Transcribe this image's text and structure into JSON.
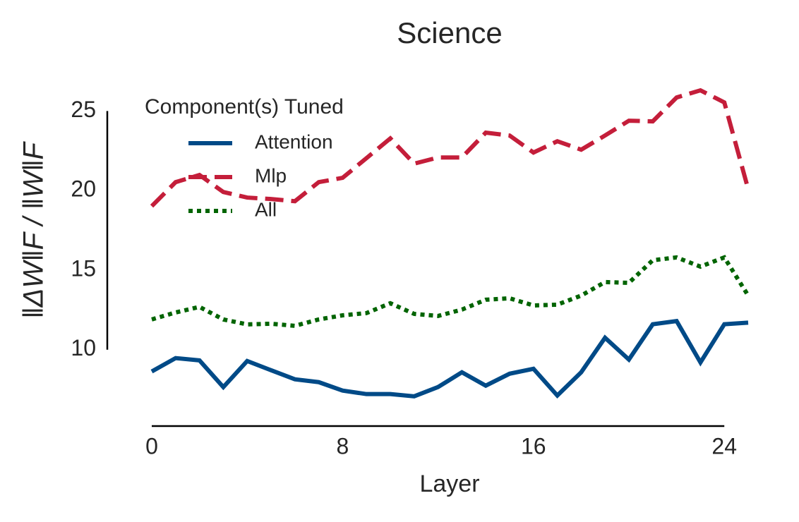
{
  "chart_data": {
    "type": "line",
    "title": "Science",
    "x_label": "Layer",
    "y_label": "‖ΔW‖F / ‖W‖F",
    "x": [
      0,
      1,
      2,
      3,
      4,
      5,
      6,
      7,
      8,
      9,
      10,
      11,
      12,
      13,
      14,
      15,
      16,
      17,
      18,
      19,
      20,
      21,
      22,
      23,
      24,
      25
    ],
    "xlim": [
      0,
      25
    ],
    "xticks": [
      0,
      8,
      16,
      24
    ],
    "ylim": [
      5.2,
      27.1
    ],
    "yticks": [
      10,
      15,
      20,
      25
    ],
    "legend_title": "Component(s) Tuned",
    "legend_loc": "upper left",
    "series": [
      {
        "name": "Attention",
        "color": "#004a87",
        "style": "solid",
        "values": [
          8.63,
          9.47,
          9.33,
          7.65,
          9.29,
          8.71,
          8.14,
          7.96,
          7.43,
          7.21,
          7.21,
          7.07,
          7.65,
          8.58,
          7.74,
          8.49,
          8.8,
          7.12,
          8.58,
          10.75,
          9.38,
          11.6,
          11.8,
          9.2,
          11.6,
          11.7
        ]
      },
      {
        "name": "Mlp",
        "color": "#c41e3a",
        "style": "dashed",
        "values": [
          19.02,
          20.53,
          20.98,
          19.91,
          19.56,
          19.47,
          19.33,
          20.53,
          20.8,
          22.04,
          23.28,
          21.69,
          22.08,
          22.08,
          23.64,
          23.46,
          22.39,
          23.1,
          22.57,
          23.46,
          24.39,
          24.35,
          25.85,
          26.3,
          25.54,
          20.09
        ]
      },
      {
        "name": "All",
        "color": "#006400",
        "style": "dotted",
        "values": [
          11.9,
          12.34,
          12.69,
          11.9,
          11.59,
          11.63,
          11.5,
          11.9,
          12.16,
          12.3,
          12.92,
          12.25,
          12.12,
          12.52,
          13.14,
          13.23,
          12.78,
          12.83,
          13.4,
          14.25,
          14.2,
          15.62,
          15.8,
          15.22,
          15.8,
          13.4
        ]
      }
    ]
  }
}
